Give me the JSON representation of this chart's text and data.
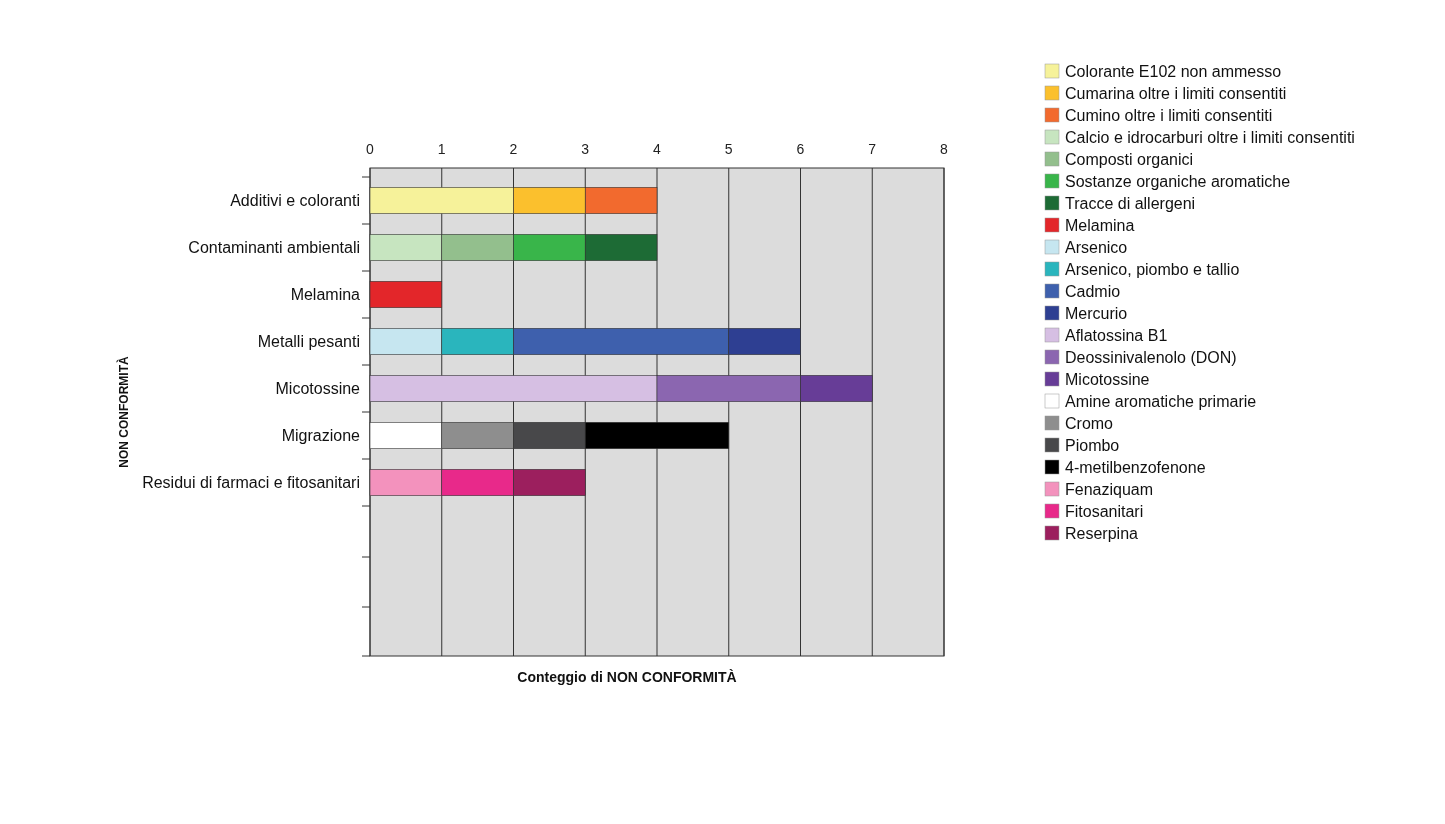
{
  "chart_data": {
    "type": "bar",
    "orientation": "horizontal",
    "stacked": true,
    "annotations": [
      "Conteggio di NON CONFORMITÀ"
    ],
    "ylabel": "NON CONFORMITÀ",
    "categories": [
      "Additivi e coloranti",
      "Contaminanti ambientali",
      "Melamina",
      "Metalli pesanti",
      "Micotossine",
      "Migrazione",
      "Residui di farmaci e fitosanitari"
    ],
    "xlim": [
      0,
      8
    ],
    "xticks": [
      0,
      1,
      2,
      3,
      4,
      5,
      6,
      7,
      8
    ],
    "grid": "x",
    "legend": "right",
    "series": [
      {
        "name": "Colorante E102 non ammesso",
        "color": "#f6f29a",
        "values": [
          2,
          null,
          null,
          null,
          null,
          null,
          null
        ]
      },
      {
        "name": "Cumarina oltre i limiti consentiti",
        "color": "#fbc02d",
        "values": [
          1,
          null,
          null,
          null,
          null,
          null,
          null
        ]
      },
      {
        "name": "Cumino oltre i limiti consentiti",
        "color": "#f26a2e",
        "values": [
          1,
          null,
          null,
          null,
          null,
          null,
          null
        ]
      },
      {
        "name": "Calcio e idrocarburi oltre i limiti consentiti",
        "color": "#c7e5c0",
        "values": [
          null,
          1,
          null,
          null,
          null,
          null,
          null
        ]
      },
      {
        "name": "Composti organici",
        "color": "#93bf8d",
        "values": [
          null,
          1,
          null,
          null,
          null,
          null,
          null
        ]
      },
      {
        "name": "Sostanze organiche aromatiche",
        "color": "#39b54a",
        "values": [
          null,
          1,
          null,
          null,
          null,
          null,
          null
        ]
      },
      {
        "name": "Tracce di allergeni",
        "color": "#1d6b35",
        "values": [
          null,
          1,
          null,
          null,
          null,
          null,
          null
        ]
      },
      {
        "name": "Melamina",
        "color": "#e3262a",
        "values": [
          null,
          null,
          1,
          null,
          null,
          null,
          null
        ]
      },
      {
        "name": "Arsenico",
        "color": "#c6e6f0",
        "values": [
          null,
          null,
          null,
          1,
          null,
          null,
          null
        ]
      },
      {
        "name": "Arsenico, piombo e tallio",
        "color": "#2ab5bd",
        "values": [
          null,
          null,
          null,
          1,
          null,
          null,
          null
        ]
      },
      {
        "name": "Cadmio",
        "color": "#3e60ad",
        "values": [
          null,
          null,
          null,
          3,
          null,
          null,
          null
        ]
      },
      {
        "name": "Mercurio",
        "color": "#2e3f92",
        "values": [
          null,
          null,
          null,
          1,
          null,
          null,
          null
        ]
      },
      {
        "name": "Aflatossina B1",
        "color": "#d6bfe3",
        "values": [
          null,
          null,
          null,
          null,
          4,
          null,
          null
        ]
      },
      {
        "name": "Deossinivalenolo (DON)",
        "color": "#8b66b0",
        "values": [
          null,
          null,
          null,
          null,
          2,
          null,
          null
        ]
      },
      {
        "name": "Micotossine",
        "color": "#673d97",
        "values": [
          null,
          null,
          null,
          null,
          1,
          null,
          null
        ]
      },
      {
        "name": "Amine aromatiche primarie",
        "color": "#ffffff",
        "values": [
          null,
          null,
          null,
          null,
          null,
          1,
          null
        ]
      },
      {
        "name": "Cromo",
        "color": "#8e8e8e",
        "values": [
          null,
          null,
          null,
          null,
          null,
          1,
          null
        ]
      },
      {
        "name": "Piombo",
        "color": "#48484a",
        "values": [
          null,
          null,
          null,
          null,
          null,
          1,
          null
        ]
      },
      {
        "name": "4-metilbenzofenone",
        "color": "#000000",
        "values": [
          null,
          null,
          null,
          null,
          null,
          2,
          null
        ]
      },
      {
        "name": "Fenaziquam",
        "color": "#f392bd",
        "values": [
          null,
          null,
          null,
          null,
          null,
          null,
          1
        ]
      },
      {
        "name": "Fitosanitari",
        "color": "#e8298a",
        "values": [
          null,
          null,
          null,
          null,
          null,
          null,
          1
        ]
      },
      {
        "name": "Reserpina",
        "color": "#9c1f5e",
        "values": [
          null,
          null,
          null,
          null,
          null,
          null,
          1
        ]
      }
    ]
  }
}
